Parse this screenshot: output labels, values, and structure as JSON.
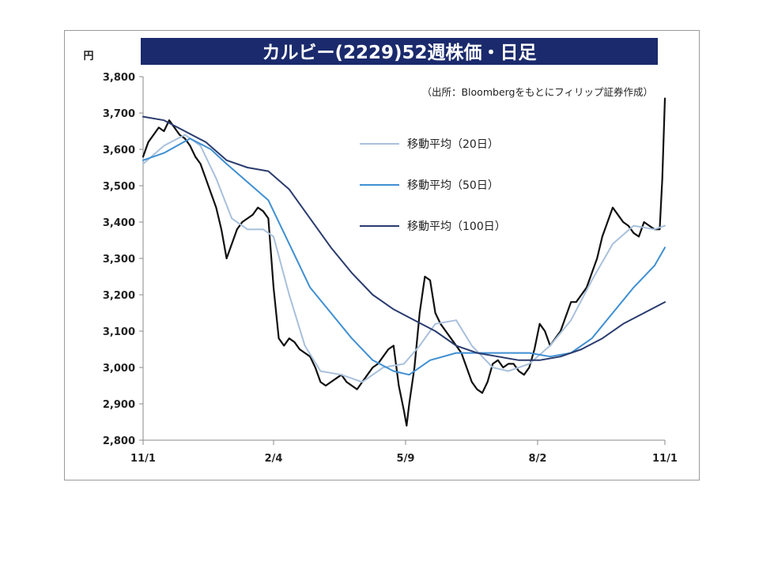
{
  "chart_data": {
    "type": "line",
    "title": "カルビー(2229)52週株価・日足",
    "source": "（出所：Bloombergをもとにフィリップ証券作成）",
    "ylabel": "円",
    "ylim": [
      2800,
      3800
    ],
    "yticks": [
      3800,
      3700,
      3600,
      3500,
      3400,
      3300,
      3200,
      3100,
      3000,
      2900,
      2800
    ],
    "ytick_labels": [
      "3,800",
      "3,700",
      "3,600",
      "3,500",
      "3,400",
      "3,300",
      "3,200",
      "3,100",
      "3,000",
      "2,900",
      "2,800"
    ],
    "xlim": [
      0,
      100
    ],
    "xticks": [
      {
        "x": 0,
        "label": "11/1"
      },
      {
        "x": 25,
        "label": "2/4"
      },
      {
        "x": 50.3,
        "label": "5/9"
      },
      {
        "x": 75.6,
        "label": "8/2"
      },
      {
        "x": 100,
        "label": "11/1"
      }
    ],
    "legend_position": "top-right",
    "series": [
      {
        "name": "",
        "color": "#111111",
        "style": "price",
        "points": [
          [
            0,
            3580
          ],
          [
            1,
            3620
          ],
          [
            2,
            3640
          ],
          [
            3,
            3660
          ],
          [
            4,
            3650
          ],
          [
            5,
            3680
          ],
          [
            6,
            3660
          ],
          [
            7,
            3640
          ],
          [
            8,
            3630
          ],
          [
            9,
            3610
          ],
          [
            10,
            3580
          ],
          [
            11,
            3560
          ],
          [
            12,
            3520
          ],
          [
            13,
            3480
          ],
          [
            14,
            3440
          ],
          [
            15,
            3380
          ],
          [
            16,
            3300
          ],
          [
            17,
            3340
          ],
          [
            18,
            3380
          ],
          [
            19,
            3400
          ],
          [
            20,
            3410
          ],
          [
            21,
            3420
          ],
          [
            22,
            3440
          ],
          [
            23,
            3430
          ],
          [
            24,
            3410
          ],
          [
            25,
            3220
          ],
          [
            26,
            3080
          ],
          [
            27,
            3060
          ],
          [
            28,
            3080
          ],
          [
            29,
            3070
          ],
          [
            30,
            3050
          ],
          [
            31,
            3040
          ],
          [
            32,
            3030
          ],
          [
            33,
            3000
          ],
          [
            34,
            2960
          ],
          [
            35,
            2950
          ],
          [
            36,
            2960
          ],
          [
            37,
            2970
          ],
          [
            38,
            2980
          ],
          [
            39,
            2960
          ],
          [
            40,
            2950
          ],
          [
            41,
            2940
          ],
          [
            42,
            2960
          ],
          [
            43,
            2980
          ],
          [
            44,
            3000
          ],
          [
            45,
            3010
          ],
          [
            46,
            3030
          ],
          [
            47,
            3050
          ],
          [
            48,
            3060
          ],
          [
            49,
            2950
          ],
          [
            50,
            2880
          ],
          [
            50.5,
            2840
          ],
          [
            51,
            2900
          ],
          [
            52,
            3000
          ],
          [
            53,
            3150
          ],
          [
            54,
            3250
          ],
          [
            55,
            3240
          ],
          [
            56,
            3150
          ],
          [
            57,
            3120
          ],
          [
            58,
            3100
          ],
          [
            59,
            3080
          ],
          [
            60,
            3060
          ],
          [
            61,
            3040
          ],
          [
            62,
            3000
          ],
          [
            63,
            2960
          ],
          [
            64,
            2940
          ],
          [
            65,
            2930
          ],
          [
            66,
            2960
          ],
          [
            67,
            3010
          ],
          [
            68,
            3020
          ],
          [
            69,
            3000
          ],
          [
            70,
            3010
          ],
          [
            71,
            3010
          ],
          [
            72,
            2990
          ],
          [
            73,
            2980
          ],
          [
            74,
            3000
          ],
          [
            75,
            3050
          ],
          [
            76,
            3120
          ],
          [
            77,
            3100
          ],
          [
            78,
            3060
          ],
          [
            79,
            3080
          ],
          [
            80,
            3100
          ],
          [
            81,
            3140
          ],
          [
            82,
            3180
          ],
          [
            83,
            3180
          ],
          [
            84,
            3200
          ],
          [
            85,
            3220
          ],
          [
            86,
            3260
          ],
          [
            87,
            3300
          ],
          [
            88,
            3360
          ],
          [
            89,
            3400
          ],
          [
            90,
            3440
          ],
          [
            91,
            3420
          ],
          [
            92,
            3400
          ],
          [
            93,
            3390
          ],
          [
            94,
            3370
          ],
          [
            95,
            3360
          ],
          [
            96,
            3400
          ],
          [
            97,
            3390
          ],
          [
            98,
            3380
          ],
          [
            99,
            3380
          ],
          [
            99.5,
            3520
          ],
          [
            100,
            3740
          ]
        ]
      },
      {
        "name": "移動平均（20日）",
        "color": "#a8c0dc",
        "style": "line",
        "points": [
          [
            0,
            3560
          ],
          [
            4,
            3610
          ],
          [
            8,
            3640
          ],
          [
            11,
            3610
          ],
          [
            14,
            3520
          ],
          [
            17,
            3410
          ],
          [
            20,
            3380
          ],
          [
            23,
            3380
          ],
          [
            25,
            3360
          ],
          [
            28,
            3200
          ],
          [
            31,
            3060
          ],
          [
            34,
            2990
          ],
          [
            38,
            2980
          ],
          [
            42,
            2960
          ],
          [
            46,
            3000
          ],
          [
            50,
            3010
          ],
          [
            53,
            3060
          ],
          [
            56,
            3120
          ],
          [
            60,
            3130
          ],
          [
            63,
            3060
          ],
          [
            67,
            3000
          ],
          [
            70,
            2990
          ],
          [
            74,
            3010
          ],
          [
            78,
            3060
          ],
          [
            82,
            3130
          ],
          [
            86,
            3240
          ],
          [
            90,
            3340
          ],
          [
            94,
            3390
          ],
          [
            98,
            3380
          ],
          [
            100,
            3390
          ]
        ]
      },
      {
        "name": "移動平均（50日）",
        "color": "#3f8fd2",
        "style": "line",
        "points": [
          [
            0,
            3570
          ],
          [
            4,
            3590
          ],
          [
            9,
            3630
          ],
          [
            13,
            3600
          ],
          [
            16,
            3560
          ],
          [
            20,
            3510
          ],
          [
            24,
            3460
          ],
          [
            28,
            3340
          ],
          [
            32,
            3220
          ],
          [
            36,
            3150
          ],
          [
            40,
            3080
          ],
          [
            44,
            3020
          ],
          [
            48,
            2990
          ],
          [
            51,
            2980
          ],
          [
            55,
            3020
          ],
          [
            60,
            3040
          ],
          [
            65,
            3040
          ],
          [
            70,
            3040
          ],
          [
            74,
            3040
          ],
          [
            78,
            3030
          ],
          [
            82,
            3040
          ],
          [
            86,
            3080
          ],
          [
            90,
            3150
          ],
          [
            94,
            3220
          ],
          [
            98,
            3280
          ],
          [
            100,
            3330
          ]
        ]
      },
      {
        "name": "移動平均（100日）",
        "color": "#2a3b6e",
        "style": "line",
        "points": [
          [
            0,
            3690
          ],
          [
            4,
            3680
          ],
          [
            8,
            3650
          ],
          [
            12,
            3620
          ],
          [
            16,
            3570
          ],
          [
            20,
            3550
          ],
          [
            24,
            3540
          ],
          [
            28,
            3490
          ],
          [
            32,
            3410
          ],
          [
            36,
            3330
          ],
          [
            40,
            3260
          ],
          [
            44,
            3200
          ],
          [
            48,
            3160
          ],
          [
            52,
            3130
          ],
          [
            56,
            3100
          ],
          [
            60,
            3060
          ],
          [
            64,
            3040
          ],
          [
            68,
            3030
          ],
          [
            72,
            3020
          ],
          [
            76,
            3020
          ],
          [
            80,
            3030
          ],
          [
            84,
            3050
          ],
          [
            88,
            3080
          ],
          [
            92,
            3120
          ],
          [
            96,
            3150
          ],
          [
            100,
            3180
          ]
        ]
      }
    ]
  }
}
